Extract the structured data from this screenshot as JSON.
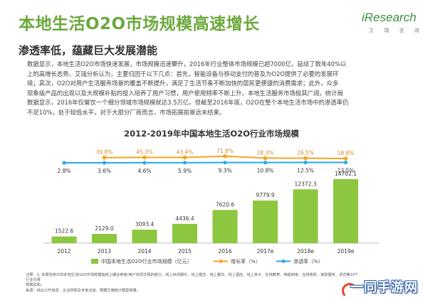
{
  "title": "本地生活O2O市场规模高速增长",
  "subtitle": "渗透率低，蕴藏巨大发展潜能",
  "logo": {
    "name": "iResearch",
    "sub": "艾 瑞 咨 询",
    "color": "#8dc63f"
  },
  "body_lines": [
    "数据显示，本地生活O2O市场快速发展，市场规模迅速攀升，2016年行业整体市场规模已超7000亿，延续了数年40%以",
    "上的高增长态势。艾瑞分析认为，主要归因于以下几点：首先，智能设备与移动支付的普及为O2O提供了必要的发展环",
    "境；其次，O2O对用户生活服务场景的覆盖不断提升，满足了生活节奏不断加快的居民更便捷的消费需求；此外，众多",
    "现象级产品的出现以及大规模补贴的投入培养了用户习惯，用户使用频率不断上升。本地生活服务市场极其广阔，统计局",
    "数据显示，2016年仅餐饮一个细分领域市场规模就达3.5万亿。但截至2016年底，O2O在整个本地生活市场中的渗透率仍",
    "不足10%，处于较低水平，对于大部分厂商而言，市场拓展前景远未结束。"
  ],
  "chart_data": {
    "type": "bar",
    "title": "2012-2019年中国本地生活O2O行业市场规模",
    "categories": [
      "2012",
      "2013",
      "2014",
      "2015",
      "2016",
      "2017e",
      "2018e",
      "2019e"
    ],
    "series": [
      {
        "name": "中国本地生活O2O行业市场规模（亿元）",
        "type": "bar",
        "values": [
          1522.6,
          2129.0,
          3093.4,
          4436.4,
          7620.6,
          9779.9,
          12372.3,
          14702.1
        ],
        "labels": [
          "1522.6",
          "2129.0",
          "3093.4",
          "4436.4",
          "7620.6",
          "9779.9",
          "12372.3",
          "14702.1"
        ],
        "color": "#8dc63f"
      },
      {
        "name": "增长率（%）",
        "type": "line",
        "values": [
          null,
          39.8,
          45.3,
          43.4,
          71.8,
          28.3,
          26.5,
          18.8
        ],
        "labels": [
          "",
          "39.8%",
          "45.3%",
          "43.4%",
          "71.8%",
          "28.3%",
          "26.5%",
          "18.8%"
        ],
        "color": "#f5a623"
      },
      {
        "name": "渗透率（%）",
        "type": "line",
        "values": [
          2.8,
          3.6,
          4.6,
          5.9,
          9.3,
          10.8,
          12.5,
          13.5
        ],
        "labels": [
          "2.8%",
          "3.6%",
          "4.6%",
          "5.9%",
          "9.3%",
          "10.8%",
          "12.5%",
          "13.5%"
        ],
        "color": "#29abe2"
      }
    ]
  },
  "notes": [
    "注释：1. 本报告统计的本地生活O2O市场规模指线上撮合商家/用户实现交易的部分，线上休闲娱乐、线上婚恋、线上餐饮、线上酒店、线上亲子、在线教育、商超到家、在线电影、家政服务、洗衣等10个行业交易",
    "规模总和。",
    "来源：综合公开信息、企业财报及专家访谈，根据艾瑞统计模型核算。"
  ],
  "watermark": "一同手游网"
}
